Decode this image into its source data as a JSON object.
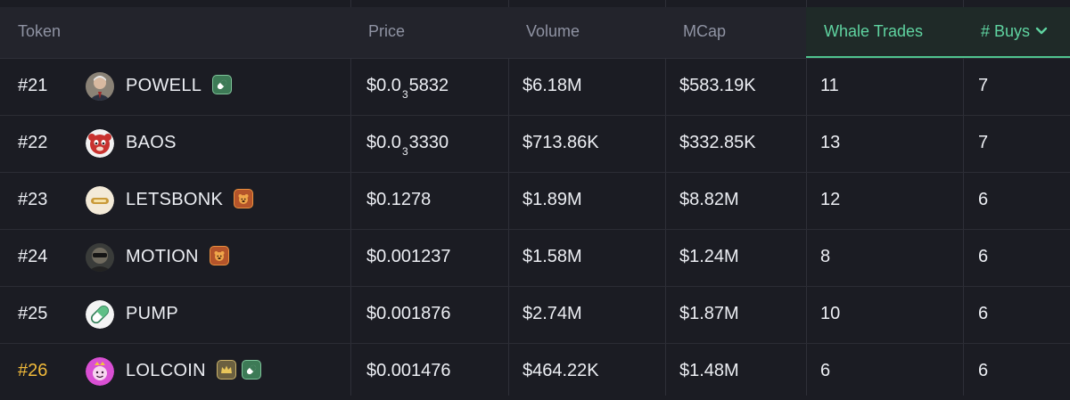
{
  "columns": {
    "token": "Token",
    "price": "Price",
    "volume": "Volume",
    "mcap": "MCap",
    "whale_trades": "Whale Trades",
    "buys": "# Buys"
  },
  "colors": {
    "background": "#1b1c23",
    "header_bg": "#23242c",
    "active_column_text": "#5fd3a0",
    "active_underline": "#4fc48f",
    "gold_rank": "#f0b93a"
  },
  "sort": {
    "column": "buys",
    "direction": "desc"
  },
  "rows": [
    {
      "rank": "#21",
      "name": "POWELL",
      "price_prefix": "$0.0",
      "price_sub": "3",
      "price_rest": "5832",
      "volume": "$6.18M",
      "mcap": "$583.19K",
      "whale_trades": "11",
      "buys": "7",
      "badges": [
        "pill-icon"
      ]
    },
    {
      "rank": "#22",
      "name": "BAOS",
      "price_prefix": "$0.0",
      "price_sub": "3",
      "price_rest": "3330",
      "volume": "$713.86K",
      "mcap": "$332.85K",
      "whale_trades": "13",
      "buys": "7",
      "badges": []
    },
    {
      "rank": "#23",
      "name": "LETSBONK",
      "price_prefix": "$0.1278",
      "price_sub": "",
      "price_rest": "",
      "volume": "$1.89M",
      "mcap": "$8.82M",
      "whale_trades": "12",
      "buys": "6",
      "badges": [
        "bonk-icon"
      ]
    },
    {
      "rank": "#24",
      "name": "MOTION",
      "price_prefix": "$0.001237",
      "price_sub": "",
      "price_rest": "",
      "volume": "$1.58M",
      "mcap": "$1.24M",
      "whale_trades": "8",
      "buys": "6",
      "badges": [
        "bonk-icon"
      ]
    },
    {
      "rank": "#25",
      "name": "PUMP",
      "price_prefix": "$0.001876",
      "price_sub": "",
      "price_rest": "",
      "volume": "$2.74M",
      "mcap": "$1.87M",
      "whale_trades": "10",
      "buys": "6",
      "badges": []
    },
    {
      "rank": "#26",
      "name": "LOLCOIN",
      "price_prefix": "$0.001476",
      "price_sub": "",
      "price_rest": "",
      "volume": "$464.22K",
      "mcap": "$1.48M",
      "whale_trades": "6",
      "buys": "6",
      "badges": [
        "crown-icon",
        "pill-icon"
      ]
    }
  ]
}
